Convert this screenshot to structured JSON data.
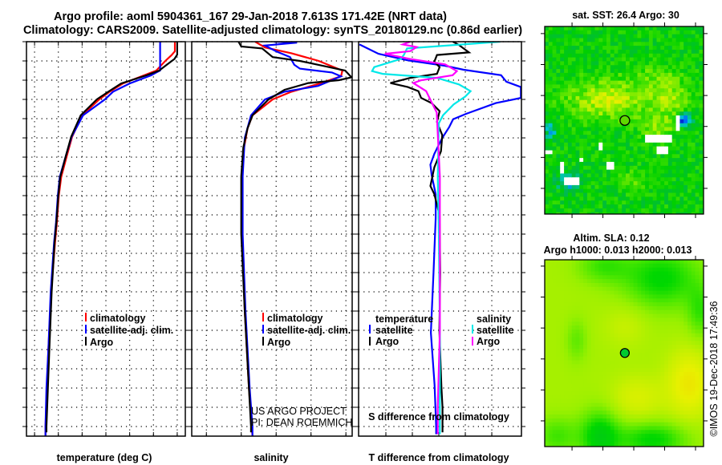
{
  "header": {
    "title_line1": "Argo profile: aoml 5904361_167 29-Jan-2018 7.613S 171.42E (NRT data)",
    "title_line2": "Climatology: CARS2009. Satellite-adjusted climatology: synTS_20180129.nc (0.86d earlier)"
  },
  "credits": {
    "line1": "US ARGO PROJECT",
    "line2": "PI: DEAN ROEMMICH",
    "copyright": "©IMOS 19-Dec-2018 17:49:36"
  },
  "colors": {
    "climatology": "#ff0000",
    "satellite": "#0000ff",
    "argo": "#000000",
    "sal_satellite": "#00e8e8",
    "sal_argo": "#ff00ff"
  },
  "chart_data": [
    {
      "type": "line",
      "id": "temperature",
      "xlabel": "temperature (deg C)",
      "ylabel": "depth",
      "xlim": [
        -1.7,
        31.7
      ],
      "ylim": [
        0,
        2050
      ],
      "xticks": [
        0,
        5,
        10,
        15,
        20,
        25,
        30
      ],
      "yticks": [
        0,
        100,
        200,
        300,
        400,
        500,
        600,
        700,
        800,
        900,
        1000,
        1100,
        1200,
        1300,
        1400,
        1500,
        1600,
        1700,
        1800,
        1900,
        2000
      ],
      "grid": true,
      "legend": [
        "climatology",
        "satellite-adj. clim.",
        "Argo"
      ],
      "series": [
        {
          "name": "climatology",
          "color": "#ff0000",
          "depth": [
            0,
            50,
            70,
            100,
            150,
            175,
            217,
            260,
            300,
            383,
            494,
            592,
            703,
            800,
            940,
            1044,
            1300,
            1600,
            1800,
            2000,
            2050
          ],
          "values": [
            29.5,
            29.5,
            28.8,
            27.5,
            25.6,
            23.0,
            18.6,
            15.8,
            13.6,
            10.0,
            7.9,
            6.8,
            5.6,
            5.1,
            4.7,
            4.3,
            3.5,
            2.9,
            2.6,
            2.3,
            2.3
          ]
        },
        {
          "name": "satellite-adj. clim.",
          "color": "#0000ff",
          "depth": [
            0,
            150,
            160,
            175,
            217,
            260,
            300,
            383,
            494,
            592,
            703,
            800,
            940,
            1044,
            1300,
            1600,
            1800,
            2000,
            2050
          ],
          "values": [
            26.4,
            26.4,
            25.6,
            24.5,
            20.0,
            16.5,
            14.8,
            10.2,
            7.8,
            6.6,
            5.3,
            4.9,
            4.5,
            4.1,
            3.4,
            2.9,
            2.5,
            2.3,
            2.3
          ]
        },
        {
          "name": "Argo",
          "color": "#000000",
          "depth": [
            0,
            67,
            90,
            120,
            150,
            175,
            217,
            260,
            300,
            383,
            494,
            592,
            703,
            800,
            940,
            1044,
            1300,
            1600,
            1800,
            2000,
            2030
          ],
          "values": [
            30.0,
            30.0,
            29.4,
            27.8,
            26.2,
            23.5,
            18.2,
            15.5,
            13.1,
            9.7,
            7.7,
            6.6,
            5.4,
            5.0,
            4.6,
            4.2,
            3.6,
            3.1,
            2.8,
            2.5,
            2.5
          ]
        }
      ]
    },
    {
      "type": "line",
      "id": "salinity",
      "xlabel": "salinity",
      "ylabel": "depth",
      "xlim": [
        33.79,
        36.09
      ],
      "ylim": [
        0,
        2050
      ],
      "xticks": [
        34,
        34.5,
        35,
        35.5,
        36
      ],
      "grid": true,
      "legend": [
        "climatology",
        "satellite-adj. clim.",
        "Argo"
      ],
      "series": [
        {
          "name": "climatology",
          "color": "#ff0000",
          "depth": [
            0,
            30,
            60,
            100,
            150,
            180,
            220,
            260,
            300,
            383,
            450,
            550,
            700,
            1000,
            1400,
            1800,
            2000,
            2050
          ],
          "values": [
            34.7,
            34.84,
            35.22,
            35.61,
            35.95,
            35.93,
            35.6,
            35.22,
            34.95,
            34.66,
            34.59,
            34.54,
            34.51,
            34.51,
            34.55,
            34.61,
            34.65,
            34.66
          ]
        },
        {
          "name": "satellite-adj. clim.",
          "color": "#0000ff",
          "depth": [
            0,
            5,
            20,
            50,
            80,
            120,
            140,
            160,
            180,
            230,
            260,
            300,
            383,
            500,
            700,
            1000,
            1400,
            1800,
            2000,
            2050
          ],
          "values": [
            34.97,
            35.3,
            34.84,
            35.0,
            35.2,
            35.26,
            35.34,
            35.8,
            35.93,
            35.6,
            35.12,
            34.84,
            34.64,
            34.55,
            34.52,
            34.52,
            34.56,
            34.62,
            34.66,
            34.66
          ]
        },
        {
          "name": "Argo",
          "color": "#000000",
          "depth": [
            0,
            25,
            35,
            80,
            100,
            130,
            150,
            185,
            200,
            215,
            250,
            300,
            383,
            450,
            550,
            700,
            1000,
            1400,
            1800,
            2000,
            2030
          ],
          "values": [
            34.46,
            34.5,
            34.8,
            34.95,
            35.34,
            35.73,
            35.99,
            36.08,
            35.9,
            35.46,
            35.12,
            34.89,
            34.66,
            34.59,
            34.53,
            34.5,
            34.5,
            34.55,
            34.61,
            34.64,
            34.64
          ]
        }
      ]
    },
    {
      "type": "line",
      "id": "difference",
      "xlabel": "T difference from climatology",
      "x2label": "S difference from climatology",
      "xlim": [
        -3.03,
        3.12
      ],
      "x2lim": [
        -0.7575,
        0.78
      ],
      "ylim": [
        0,
        2050
      ],
      "xticks": [
        -2,
        -1,
        0,
        1,
        2
      ],
      "x2ticks": [
        -0.5,
        -0.25,
        0,
        0.25,
        0.5
      ],
      "x2ticklabels": [
        "-0.5",
        "-0.25",
        "0",
        "0.25",
        "0.5"
      ],
      "grid": true,
      "legend_temperature": {
        "heading": "temperature",
        "items": [
          "satellite",
          "Argo"
        ]
      },
      "legend_salinity": {
        "heading": "salinity",
        "items": [
          "satellite",
          "Argo"
        ]
      },
      "series": [
        {
          "name": "temperature satellite",
          "axis": "T",
          "color": "#0000ff",
          "depth": [
            14,
            63,
            97,
            125,
            146,
            174,
            208,
            236,
            292,
            319,
            375,
            403,
            444,
            500,
            583,
            639,
            694,
            792,
            917,
            1200,
            1512,
            1783,
            2000,
            2040
          ],
          "values": [
            -3.0,
            -2.28,
            -1.17,
            0.23,
            0.94,
            2.35,
            2.55,
            3.1,
            3.1,
            2.15,
            1.03,
            0.54,
            0.39,
            0.13,
            -0.17,
            -0.32,
            -0.27,
            -0.12,
            -0.12,
            -0.2,
            -0.3,
            -0.16,
            -0.1,
            -0.1
          ]
        },
        {
          "name": "temperature Argo",
          "axis": "T",
          "color": "#000000",
          "depth": [
            0,
            14,
            56,
            69,
            104,
            132,
            167,
            188,
            215,
            236,
            257,
            292,
            319,
            361,
            417,
            486,
            569,
            653,
            750,
            792,
            903,
            1200,
            1500,
            1800,
            1900,
            2030
          ],
          "values": [
            0.53,
            0.73,
            1.14,
            -0.07,
            -0.17,
            0.03,
            -0.07,
            -1.08,
            -1.83,
            -1.17,
            -0.77,
            -0.67,
            -0.27,
            0.03,
            -0.07,
            0.13,
            0.08,
            -0.17,
            -0.32,
            -0.17,
            0.03,
            0.05,
            0.02,
            0.1,
            0.14,
            0.14
          ]
        },
        {
          "name": "salinity satellite",
          "axis": "S",
          "color": "#00e8e8",
          "depth": [
            0,
            35,
            69,
            90,
            132,
            153,
            167,
            188,
            222,
            257,
            285,
            326,
            382,
            424,
            700,
            1000,
            1500,
            2000,
            2040
          ],
          "values": [
            0.58,
            -0.3,
            -0.33,
            -0.36,
            -0.61,
            -0.63,
            -0.53,
            -0.02,
            0.19,
            0.3,
            0.25,
            0.14,
            0.04,
            0.0,
            -0.01,
            0.0,
            0.01,
            0.01,
            0.01
          ]
        },
        {
          "name": "salinity Argo",
          "axis": "S",
          "color": "#ff00ff",
          "depth": [
            0,
            14,
            28,
            49,
            63,
            90,
            118,
            153,
            174,
            201,
            215,
            257,
            313,
            368,
            700,
            1000,
            1500,
            1900,
            2040
          ],
          "values": [
            -0.27,
            -0.34,
            -0.21,
            -0.27,
            -0.51,
            -0.27,
            0.06,
            0.17,
            0.13,
            -0.17,
            -0.24,
            -0.12,
            -0.07,
            -0.02,
            0.01,
            0.01,
            0.01,
            -0.01,
            -0.01
          ]
        }
      ]
    },
    {
      "type": "heatmap",
      "id": "sst-map",
      "title": "sat. SST: 26.4 Argo: 30",
      "xlim": [
        166.23,
        176.52
      ],
      "ylim": [
        -13.66,
        -1.54
      ],
      "xticks": [
        168,
        170,
        172,
        174,
        176
      ],
      "yticks": [
        -2,
        -4,
        -6,
        -8,
        -10,
        -12
      ],
      "marker": {
        "lon": 171.42,
        "lat": -7.613
      },
      "colorscale": [
        "#0000b0",
        "#0060ff",
        "#00c8d0",
        "#00b848",
        "#00d000",
        "#40e000",
        "#a0f000",
        "#e8f000",
        "#f0c000",
        "#f08000"
      ],
      "field_model": {
        "base": 0.45,
        "noise": 0.09,
        "bumps": [
          {
            "lon": 170.3,
            "lat": -6.3,
            "slon": 1.8,
            "slat": 0.9,
            "amp": 0.28
          },
          {
            "lon": 174.3,
            "lat": -6.2,
            "slon": 0.9,
            "slat": 0.7,
            "amp": 0.2
          },
          {
            "lon": 173.6,
            "lat": -8.0,
            "slon": 0.8,
            "slat": 0.6,
            "amp": 0.2
          },
          {
            "lon": 173.5,
            "lat": -4.8,
            "slon": 1.2,
            "slat": 0.6,
            "amp": 0.12
          },
          {
            "lon": 172,
            "lat": -11.5,
            "slon": 0.9,
            "slat": 0.5,
            "amp": 0.1
          },
          {
            "lon": 167.8,
            "lat": -11.6,
            "slon": 0.5,
            "slat": 0.4,
            "amp": -0.3
          },
          {
            "lon": 166.6,
            "lat": -8.2,
            "slon": 0.3,
            "slat": 0.5,
            "amp": -0.25
          },
          {
            "lon": 175.3,
            "lat": -7.6,
            "slon": 0.3,
            "slat": 0.3,
            "amp": -0.45
          }
        ],
        "gaps": [
          [
            166.2,
            -9.6,
            0.6,
            0.2
          ],
          [
            167.3,
            -10.4,
            0.2,
            0.6
          ],
          [
            167.6,
            -11.4,
            1.0,
            0.4
          ],
          [
            170.2,
            -10.2,
            0.6,
            0.6
          ],
          [
            171.9,
            -8.2,
            0.2,
            0.5
          ],
          [
            172.8,
            -8.6,
            1.6,
            0.4
          ],
          [
            173.6,
            -9.2,
            0.6,
            0.5
          ],
          [
            174.8,
            -7.4,
            0.2,
            0.8
          ],
          [
            169.7,
            -9.0,
            0.2,
            0.6
          ],
          [
            171.0,
            -4.2,
            0.2,
            0.2
          ],
          [
            175.4,
            -9.5,
            0.2,
            0.2
          ],
          [
            168.6,
            -10.0,
            0.2,
            0.4
          ]
        ]
      }
    },
    {
      "type": "heatmap",
      "id": "sla-map",
      "title": "Altim. SLA: 0.12",
      "subtitle": "Argo h1000: 0.013 h2000: 0.013",
      "xlim": [
        166.23,
        176.52
      ],
      "ylim": [
        -13.66,
        -1.59
      ],
      "xticks": [
        168,
        170,
        172,
        174,
        176
      ],
      "yticks": [
        -2,
        -4,
        -6,
        -8,
        -10,
        -12
      ],
      "marker": {
        "lon": 171.42,
        "lat": -7.613
      },
      "colorscale": [
        "#00c818",
        "#00d800",
        "#50e800",
        "#98f000",
        "#c8f000",
        "#e8f000",
        "#f0d800"
      ],
      "field_model": {
        "base": 0.55,
        "noise": 0.0,
        "bumps": [
          {
            "lon": 173.8,
            "lat": -2.8,
            "slon": 1.8,
            "slat": 1.4,
            "amp": -0.4
          },
          {
            "lon": 170.0,
            "lat": -2.0,
            "slon": 1.2,
            "slat": 0.8,
            "amp": -0.25
          },
          {
            "lon": 169.8,
            "lat": -13.0,
            "slon": 0.9,
            "slat": 1.2,
            "amp": -0.45
          },
          {
            "lon": 173.2,
            "lat": -13.2,
            "slon": 1.6,
            "slat": 0.8,
            "amp": -0.4
          },
          {
            "lon": 167.0,
            "lat": -13.0,
            "slon": 1.0,
            "slat": 0.9,
            "amp": -0.25
          },
          {
            "lon": 175.6,
            "lat": -9.6,
            "slon": 1.0,
            "slat": 1.5,
            "amp": 0.35
          },
          {
            "lon": 172.2,
            "lat": -10.5,
            "slon": 1.2,
            "slat": 1.0,
            "amp": 0.2
          },
          {
            "lon": 171.5,
            "lat": -5.8,
            "slon": 1.0,
            "slat": 1.0,
            "amp": 0.12
          },
          {
            "lon": 168.3,
            "lat": -6.8,
            "slon": 0.5,
            "slat": 1.0,
            "amp": -0.18
          },
          {
            "lon": 176.3,
            "lat": -5.0,
            "slon": 0.6,
            "slat": 1.2,
            "amp": -0.25
          }
        ],
        "gaps": []
      }
    }
  ]
}
